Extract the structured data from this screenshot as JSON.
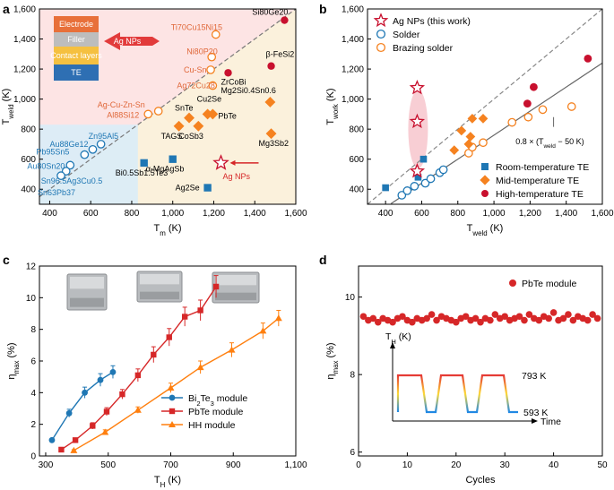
{
  "chart_data": [
    {
      "panel": "a",
      "type": "scatter",
      "xlabel": "T",
      "xlabel_sub": "m",
      "xlabel_unit": " (K)",
      "ylabel": "T",
      "ylabel_sub": "weld",
      "ylabel_unit": " (K)",
      "xlim": [
        350,
        1600
      ],
      "ylim": [
        300,
        1600
      ],
      "xticks": [
        400,
        600,
        800,
        1000,
        1200,
        1400,
        1600
      ],
      "yticks": [
        400,
        600,
        800,
        1000,
        1200,
        1400,
        1600
      ],
      "points": [
        {
          "x": 1545,
          "y": 1525,
          "label": "Si80Ge20",
          "kind": "high"
        },
        {
          "x": 1210,
          "y": 1430,
          "label": "Ti70Cu15Ni15",
          "kind": "braze"
        },
        {
          "x": 1190,
          "y": 1280,
          "label": "Ni80P20",
          "kind": "braze"
        },
        {
          "x": 1185,
          "y": 1195,
          "label": "Cu-Sn",
          "kind": "braze"
        },
        {
          "x": 1270,
          "y": 1175,
          "label": "ZrCoBi",
          "kind": "high"
        },
        {
          "x": 1480,
          "y": 1220,
          "label": "β-FeSi2",
          "kind": "high"
        },
        {
          "x": 1195,
          "y": 1090,
          "label": "Ag72Cu28",
          "kind": "braze"
        },
        {
          "x": 1475,
          "y": 980,
          "label": "Mg2Si0.4Sn0.6",
          "kind": "mid"
        },
        {
          "x": 1480,
          "y": 770,
          "label": "Mg3Sb2",
          "kind": "mid"
        },
        {
          "x": 1170,
          "y": 900,
          "label": "Cu2Se",
          "kind": "mid"
        },
        {
          "x": 1080,
          "y": 875,
          "label": "SnTe",
          "kind": "mid"
        },
        {
          "x": 1195,
          "y": 900,
          "label": "PbTe",
          "kind": "mid"
        },
        {
          "x": 1125,
          "y": 820,
          "label": "CoSb3",
          "kind": "mid"
        },
        {
          "x": 1030,
          "y": 820,
          "label": "TAGS",
          "kind": "mid"
        },
        {
          "x": 930,
          "y": 920,
          "label": "Ag-Cu-Zn-Sn",
          "kind": "braze"
        },
        {
          "x": 880,
          "y": 900,
          "label": "Al88Si12",
          "kind": "braze"
        },
        {
          "x": 1000,
          "y": 600,
          "label": "α-MgAgSb",
          "kind": "room"
        },
        {
          "x": 860,
          "y": 575,
          "label": "Bi0.5Sb1.5Te3",
          "kind": "room"
        },
        {
          "x": 1170,
          "y": 410,
          "label": "Ag2Se",
          "kind": "room"
        },
        {
          "x": 650,
          "y": 700,
          "label": "Zn95Al5",
          "kind": "solder"
        },
        {
          "x": 610,
          "y": 665,
          "label": "Au88Ge12",
          "kind": "solder"
        },
        {
          "x": 570,
          "y": 630,
          "label": "Pb95Sn5",
          "kind": "solder"
        },
        {
          "x": 500,
          "y": 560,
          "label": "Au80Sn20",
          "kind": "solder"
        },
        {
          "x": 480,
          "y": 520,
          "label": "Sn96.5Ag3Cu0.5",
          "kind": "solder"
        },
        {
          "x": 455,
          "y": 490,
          "label": "Sn63Pb37",
          "kind": "solder"
        }
      ],
      "agnp_point": {
        "x": 1235,
        "y": 575,
        "label": "Ag NPs"
      },
      "stack_layers": [
        "Electrode",
        "Filler",
        "Contact layers",
        "TE"
      ],
      "stack_arrow_label": "Ag NPs"
    },
    {
      "panel": "b",
      "type": "scatter",
      "xlabel": "T",
      "xlabel_sub": "weld",
      "xlabel_unit": " (K)",
      "ylabel": "T",
      "ylabel_sub": "work",
      "ylabel_unit": " (K)",
      "xlim": [
        300,
        1600
      ],
      "ylim": [
        300,
        1600
      ],
      "xticks": [
        400,
        600,
        800,
        1000,
        1200,
        1400,
        1600
      ],
      "yticks": [
        400,
        600,
        800,
        1000,
        1200,
        1400,
        1600
      ],
      "fit_line_label": "0.8 × (T",
      "fit_line_label_sub": "weld",
      "fit_line_label_end": " − 50 K)",
      "legend_top": [
        "Ag NPs (this work)",
        "Solder",
        "Brazing solder"
      ],
      "legend_bottom": [
        "Room-temperature TE",
        "Mid-temperature TE",
        "High-temperature TE"
      ],
      "agnp": [
        {
          "x": 575,
          "y": 1075
        },
        {
          "x": 575,
          "y": 850
        },
        {
          "x": 575,
          "y": 520
        }
      ],
      "solder": [
        {
          "x": 490,
          "y": 360
        },
        {
          "x": 520,
          "y": 390
        },
        {
          "x": 560,
          "y": 420
        },
        {
          "x": 620,
          "y": 440
        },
        {
          "x": 650,
          "y": 470
        },
        {
          "x": 700,
          "y": 510
        },
        {
          "x": 720,
          "y": 530
        }
      ],
      "braze": [
        {
          "x": 860,
          "y": 640
        },
        {
          "x": 880,
          "y": 680
        },
        {
          "x": 940,
          "y": 710
        },
        {
          "x": 1100,
          "y": 845
        },
        {
          "x": 1190,
          "y": 880
        },
        {
          "x": 1270,
          "y": 930
        },
        {
          "x": 1430,
          "y": 950
        }
      ],
      "room": [
        {
          "x": 400,
          "y": 410
        },
        {
          "x": 580,
          "y": 480
        },
        {
          "x": 610,
          "y": 600
        }
      ],
      "mid": [
        {
          "x": 780,
          "y": 660
        },
        {
          "x": 820,
          "y": 790
        },
        {
          "x": 860,
          "y": 700
        },
        {
          "x": 870,
          "y": 750
        },
        {
          "x": 880,
          "y": 870
        },
        {
          "x": 940,
          "y": 870
        }
      ],
      "high": [
        {
          "x": 1185,
          "y": 970
        },
        {
          "x": 1220,
          "y": 1080
        },
        {
          "x": 1520,
          "y": 1270
        }
      ]
    },
    {
      "panel": "c",
      "type": "line",
      "xlabel": "T",
      "xlabel_sub": "H",
      "xlabel_unit": " (K)",
      "ylabel": "η",
      "ylabel_sub": "max",
      "ylabel_unit": " (%)",
      "xlim": [
        280,
        1100
      ],
      "ylim": [
        0,
        12
      ],
      "xticks": [
        300,
        500,
        700,
        900,
        1100
      ],
      "yticks": [
        0,
        2,
        4,
        6,
        8,
        10,
        12
      ],
      "series": [
        {
          "name": "Bi2Te3 module",
          "name_parts": [
            "Bi",
            "2",
            "Te",
            "3",
            " module"
          ],
          "color": "#1f77b4",
          "marker": "circle",
          "x": [
            320,
            375,
            425,
            475,
            515
          ],
          "y": [
            1.0,
            2.7,
            4.0,
            4.8,
            5.3
          ],
          "err": [
            0.1,
            0.25,
            0.35,
            0.4,
            0.4
          ]
        },
        {
          "name": "PbTe module",
          "color": "#d62728",
          "marker": "square",
          "x": [
            350,
            395,
            450,
            495,
            545,
            595,
            645,
            695,
            745,
            795,
            845
          ],
          "y": [
            0.4,
            1.0,
            1.9,
            2.8,
            3.9,
            5.1,
            6.4,
            7.5,
            8.8,
            9.2,
            10.7
          ],
          "err": [
            0.05,
            0.1,
            0.2,
            0.25,
            0.3,
            0.4,
            0.5,
            0.55,
            0.6,
            0.65,
            0.7
          ]
        },
        {
          "name": "HH module",
          "color": "#ff7f0e",
          "marker": "triangle",
          "x": [
            390,
            490,
            595,
            700,
            795,
            895,
            995,
            1045
          ],
          "y": [
            0.35,
            1.5,
            2.9,
            4.3,
            5.6,
            6.7,
            7.9,
            8.7
          ],
          "err": [
            0.05,
            0.15,
            0.2,
            0.3,
            0.4,
            0.45,
            0.5,
            0.5
          ]
        }
      ]
    },
    {
      "panel": "d",
      "type": "scatter",
      "xlabel": "Cycles",
      "ylabel": "η",
      "ylabel_sub": "max",
      "ylabel_unit": " (%)",
      "xlim": [
        0,
        50
      ],
      "ylim": [
        5.9,
        10.8
      ],
      "xticks": [
        0,
        10,
        20,
        30,
        40,
        50
      ],
      "yticks": [
        6,
        8,
        10
      ],
      "series": [
        {
          "name": "PbTe module",
          "color": "#d62728",
          "x": [
            1,
            2,
            3,
            4,
            5,
            6,
            7,
            8,
            9,
            10,
            11,
            12,
            13,
            14,
            15,
            16,
            17,
            18,
            19,
            20,
            21,
            22,
            23,
            24,
            25,
            26,
            27,
            28,
            29,
            30,
            31,
            32,
            33,
            34,
            35,
            36,
            37,
            38,
            39,
            40,
            41,
            42,
            43,
            44,
            45,
            46,
            47,
            48,
            49
          ],
          "y": [
            9.5,
            9.4,
            9.45,
            9.35,
            9.45,
            9.4,
            9.35,
            9.45,
            9.5,
            9.4,
            9.35,
            9.45,
            9.4,
            9.45,
            9.55,
            9.4,
            9.5,
            9.45,
            9.4,
            9.35,
            9.45,
            9.5,
            9.4,
            9.45,
            9.35,
            9.45,
            9.4,
            9.55,
            9.45,
            9.5,
            9.4,
            9.45,
            9.5,
            9.4,
            9.55,
            9.45,
            9.4,
            9.5,
            9.45,
            9.6,
            9.4,
            9.45,
            9.55,
            9.4,
            9.5,
            9.45,
            9.4,
            9.55,
            9.45
          ]
        }
      ],
      "inset": {
        "ylabel": "T",
        "ylabel_sub": "H",
        "ylabel_unit": " (K)",
        "xlabel": "Time",
        "high_label": "793 K",
        "low_label": "593 K"
      }
    }
  ],
  "panels": {
    "a": "a",
    "b": "b",
    "c": "c",
    "d": "d"
  },
  "colors": {
    "blue": "#1f77b4",
    "red": "#d62728",
    "orange": "#f58220",
    "darkred": "#c8102e",
    "gray": "#666666"
  }
}
